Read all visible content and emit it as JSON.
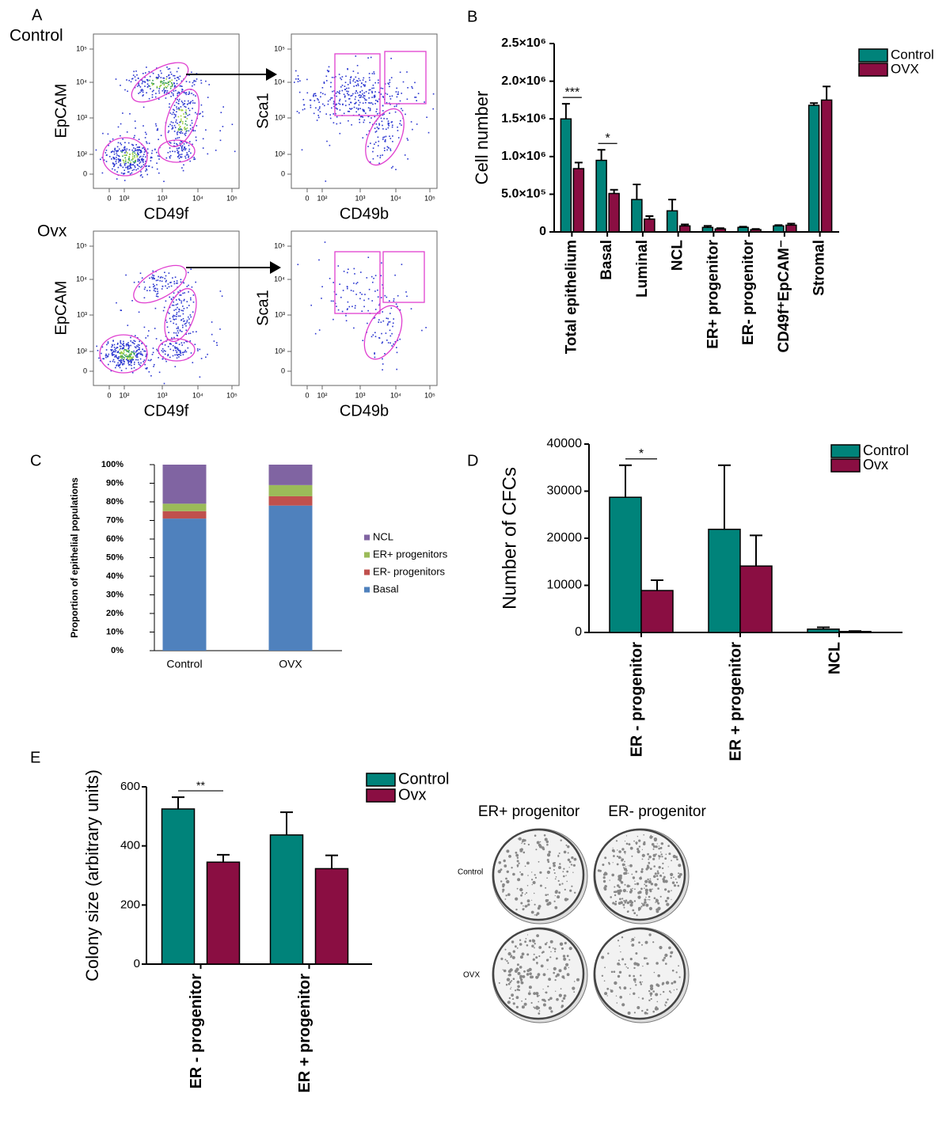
{
  "flow_cytometry": {
    "panel": "A",
    "x_tick_labels": [
      "0",
      "10²",
      "10³",
      "10⁴",
      "10⁵"
    ],
    "y_tick_labels": [
      "10⁵",
      "10⁴",
      "10³",
      "10²",
      "0"
    ],
    "groups": [
      {
        "label": "Control",
        "plots": [
          {
            "x_label": "CD49f",
            "y_label": "EpCAM"
          },
          {
            "x_label": "CD49b",
            "y_label": "Sca1"
          }
        ]
      },
      {
        "label": "Ovx",
        "plots": [
          {
            "x_label": "CD49f",
            "y_label": "EpCAM"
          },
          {
            "x_label": "CD49b",
            "y_label": "Sca1"
          }
        ]
      }
    ]
  },
  "colony_images": {
    "column_labels": [
      "ER+ progenitor",
      "ER- progenitor"
    ],
    "row_labels": [
      "Control",
      "OVX"
    ]
  },
  "chart_data": [
    {
      "type": "bar",
      "panel": "B",
      "y_label": "Cell number",
      "categories": [
        "Total epithelium",
        "Basal",
        "Luminal",
        "NCL",
        "ER+ progenitor",
        "ER- progenitor",
        "CD49f⁺EpCAM⁻",
        "Stromal"
      ],
      "series": [
        {
          "name": "Control",
          "color": "#00837a",
          "values": [
            1500000,
            950000,
            430000,
            280000,
            60000,
            60000,
            80000,
            1680000
          ],
          "errors": [
            200000,
            140000,
            200000,
            150000,
            20000,
            10000,
            10000,
            30000
          ]
        },
        {
          "name": "OVX",
          "color": "#8a0e42",
          "values": [
            840000,
            510000,
            170000,
            80000,
            40000,
            30000,
            90000,
            1750000
          ],
          "errors": [
            80000,
            50000,
            40000,
            20000,
            10000,
            10000,
            20000,
            180000
          ]
        }
      ],
      "ylim": [
        0,
        2500000
      ],
      "yticks": [
        0,
        {
          "value": 500000,
          "label": "5.0×10⁵"
        },
        {
          "value": 1000000,
          "label": "1.0×10⁶"
        },
        {
          "value": 1500000,
          "label": "1.5×10⁶"
        },
        {
          "value": 2000000,
          "label": "2.0×10⁶"
        },
        {
          "value": 2500000,
          "label": "2.5×10⁶"
        }
      ],
      "annotations": [
        "***",
        "*"
      ],
      "legend": "upper right"
    },
    {
      "type": "stacked_bar",
      "panel": "C",
      "y_label": "Proportion of epithelial populations",
      "categories": [
        "Control",
        "OVX"
      ],
      "series": [
        {
          "name": "Basal",
          "color": "#4f81bd",
          "values": [
            71,
            78
          ]
        },
        {
          "name": "ER- progenitors",
          "color": "#c0504d",
          "values": [
            4,
            5
          ]
        },
        {
          "name": "ER+ progenitors",
          "color": "#9bbb59",
          "values": [
            4,
            6
          ]
        },
        {
          "name": "NCL",
          "color": "#8064a2",
          "values": [
            21,
            11
          ]
        }
      ],
      "ylim": [
        0,
        100
      ],
      "yticks": [
        {
          "value": 0,
          "label": "0%"
        },
        {
          "value": 10,
          "label": "10%"
        },
        {
          "value": 20,
          "label": "20%"
        },
        {
          "value": 30,
          "label": "30%"
        },
        {
          "value": 40,
          "label": "40%"
        },
        {
          "value": 50,
          "label": "50%"
        },
        {
          "value": 60,
          "label": "60%"
        },
        {
          "value": 70,
          "label": "70%"
        },
        {
          "value": 80,
          "label": "80%"
        },
        {
          "value": 90,
          "label": "90%"
        },
        {
          "value": 100,
          "label": "100%"
        }
      ],
      "legend": "right"
    },
    {
      "type": "bar",
      "panel": "D",
      "y_label": "Number of CFCs",
      "categories": [
        "ER - progenitor",
        "ER + progenitor",
        "NCL"
      ],
      "series": [
        {
          "name": "Control",
          "color": "#00837a",
          "values": [
            28700,
            21900,
            700
          ],
          "errors": [
            6800,
            13600,
            400
          ]
        },
        {
          "name": "Ovx",
          "color": "#8a0e42",
          "values": [
            8900,
            14100,
            200
          ],
          "errors": [
            2200,
            6500,
            100
          ]
        }
      ],
      "ylim": [
        0,
        40000
      ],
      "yticks": [
        0,
        10000,
        20000,
        30000,
        40000
      ],
      "annotations": [
        "*"
      ],
      "legend": "upper right"
    },
    {
      "type": "bar",
      "panel": "E",
      "y_label": "Colony size (arbitrary units)",
      "categories": [
        "ER - progenitor",
        "ER + progenitor"
      ],
      "series": [
        {
          "name": "Control",
          "color": "#00837a",
          "values": [
            525,
            437
          ],
          "errors": [
            40,
            77
          ]
        },
        {
          "name": "Ovx",
          "color": "#8a0e42",
          "values": [
            345,
            323
          ],
          "errors": [
            25,
            45
          ]
        }
      ],
      "ylim": [
        0,
        600
      ],
      "yticks": [
        0,
        200,
        400,
        600
      ],
      "annotations": [
        "**"
      ],
      "legend": "upper right"
    }
  ]
}
